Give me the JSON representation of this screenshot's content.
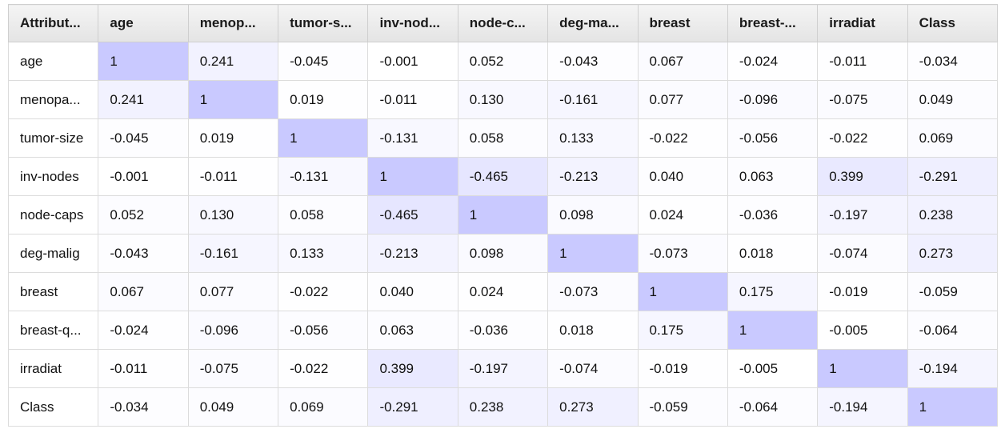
{
  "correlation_table": {
    "corner_label": "Attribut...",
    "columns": [
      "age",
      "menop...",
      "tumor-s...",
      "inv-nod...",
      "node-c...",
      "deg-ma...",
      "breast",
      "breast-...",
      "irradiat",
      "Class"
    ],
    "rows": [
      {
        "label": "age",
        "values": [
          "1",
          "0.241",
          "-0.045",
          "-0.001",
          "0.052",
          "-0.043",
          "0.067",
          "-0.024",
          "-0.011",
          "-0.034"
        ]
      },
      {
        "label": "menopa...",
        "values": [
          "0.241",
          "1",
          "0.019",
          "-0.011",
          "0.130",
          "-0.161",
          "0.077",
          "-0.096",
          "-0.075",
          "0.049"
        ]
      },
      {
        "label": "tumor-size",
        "values": [
          "-0.045",
          "0.019",
          "1",
          "-0.131",
          "0.058",
          "0.133",
          "-0.022",
          "-0.056",
          "-0.022",
          "0.069"
        ]
      },
      {
        "label": "inv-nodes",
        "values": [
          "-0.001",
          "-0.011",
          "-0.131",
          "1",
          "-0.465",
          "-0.213",
          "0.040",
          "0.063",
          "0.399",
          "-0.291"
        ]
      },
      {
        "label": "node-caps",
        "values": [
          "0.052",
          "0.130",
          "0.058",
          "-0.465",
          "1",
          "0.098",
          "0.024",
          "-0.036",
          "-0.197",
          "0.238"
        ]
      },
      {
        "label": "deg-malig",
        "values": [
          "-0.043",
          "-0.161",
          "0.133",
          "-0.213",
          "0.098",
          "1",
          "-0.073",
          "0.018",
          "-0.074",
          "0.273"
        ]
      },
      {
        "label": "breast",
        "values": [
          "0.067",
          "0.077",
          "-0.022",
          "0.040",
          "0.024",
          "-0.073",
          "1",
          "0.175",
          "-0.019",
          "-0.059"
        ]
      },
      {
        "label": "breast-q...",
        "values": [
          "-0.024",
          "-0.096",
          "-0.056",
          "0.063",
          "-0.036",
          "0.018",
          "0.175",
          "1",
          "-0.005",
          "-0.064"
        ]
      },
      {
        "label": "irradiat",
        "values": [
          "-0.011",
          "-0.075",
          "-0.022",
          "0.399",
          "-0.197",
          "-0.074",
          "-0.019",
          "-0.005",
          "1",
          "-0.194"
        ]
      },
      {
        "label": "Class",
        "values": [
          "-0.034",
          "0.049",
          "0.069",
          "-0.291",
          "0.238",
          "0.273",
          "-0.059",
          "-0.064",
          "-0.194",
          "1"
        ]
      }
    ]
  },
  "colors": {
    "highlight_base": "#c9c9ff",
    "header_text": "#1a1a1a",
    "cell_text": "#111111",
    "grid": "#dcdcdc"
  }
}
